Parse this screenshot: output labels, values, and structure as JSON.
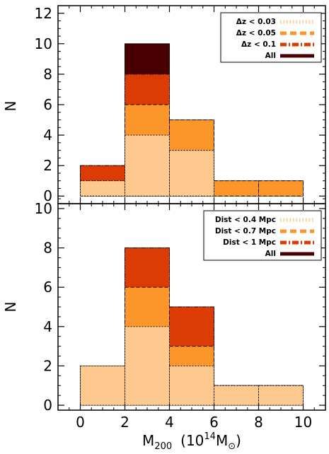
{
  "chart_data": [
    {
      "type": "bar",
      "subtype": "stacked-histogram",
      "panel": "top",
      "title": "",
      "ylabel": "N",
      "xlim": [
        -1,
        11
      ],
      "ylim": [
        -0.5,
        12.5
      ],
      "yticks": [
        0,
        2,
        4,
        6,
        8,
        10,
        12
      ],
      "bin_edges": [
        0,
        2,
        4,
        6,
        8,
        10
      ],
      "series": [
        {
          "name": "Δz < 0.03",
          "color": "#FDC98E",
          "values": [
            1,
            4,
            3,
            0,
            0
          ],
          "line": "dotted"
        },
        {
          "name": "Δz < 0.05",
          "color": "#FD962A",
          "values": [
            1,
            6,
            5,
            1,
            1
          ],
          "line": "dashed"
        },
        {
          "name": "Δz < 0.1",
          "color": "#DC3C03",
          "values": [
            2,
            8,
            5,
            1,
            1
          ],
          "line": "dashdot"
        },
        {
          "name": "All",
          "color": "#4A0000",
          "values": [
            2,
            10,
            5,
            1,
            1
          ],
          "line": "solid"
        }
      ],
      "legend_position": "top-right"
    },
    {
      "type": "bar",
      "subtype": "stacked-histogram",
      "panel": "bottom",
      "title": "",
      "ylabel": "N",
      "xlabel": "M",
      "xlabel_sub": "200",
      "xlabel_units_open": "(10",
      "xlabel_units_exp": "14",
      "xlabel_units_M": "M",
      "xlabel_units_sun": "⊙",
      "xlabel_units_close": ")",
      "xlim": [
        -1,
        11
      ],
      "ylim": [
        -0.25,
        10.25
      ],
      "yticks": [
        0,
        2,
        4,
        6,
        8,
        10
      ],
      "xticks": [
        0,
        2,
        4,
        6,
        8,
        10
      ],
      "bin_edges": [
        0,
        2,
        4,
        6,
        8,
        10
      ],
      "series": [
        {
          "name": "Dist < 0.4 Mpc",
          "color": "#FDC98E",
          "values": [
            2,
            4,
            2,
            1,
            1
          ],
          "line": "dotted"
        },
        {
          "name": "Dist < 0.7 Mpc",
          "color": "#FD962A",
          "values": [
            2,
            6,
            3,
            1,
            1
          ],
          "line": "dashed"
        },
        {
          "name": "Dist < 1 Mpc",
          "color": "#DC3C03",
          "values": [
            2,
            8,
            5,
            1,
            1
          ],
          "line": "dashdot"
        },
        {
          "name": "All",
          "color": "#4A0000",
          "values": [
            2,
            8,
            5,
            1,
            1
          ],
          "line": "solid"
        }
      ],
      "legend_position": "top-right"
    }
  ]
}
